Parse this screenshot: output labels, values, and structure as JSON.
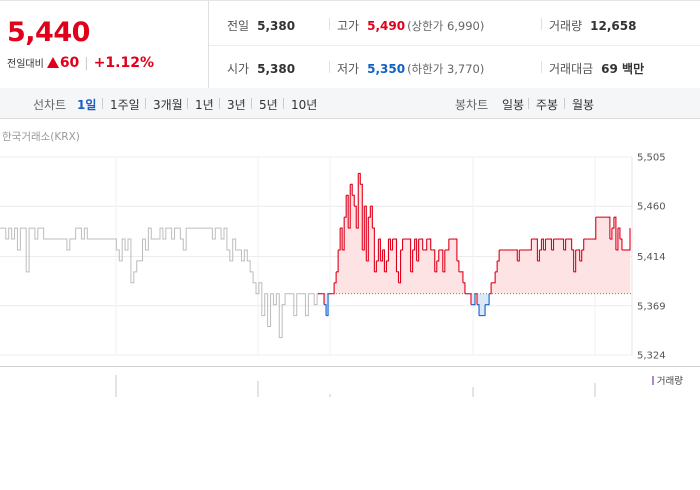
{
  "summary": {
    "price": "5,440",
    "change_label": "전일대비",
    "change_abs": "60",
    "change_pct": "+1.12%",
    "prev_close": {
      "label": "전일",
      "value": "5,380"
    },
    "open": {
      "label": "시가",
      "value": "5,380"
    },
    "high": {
      "label": "고가",
      "value": "5,490",
      "sub": "(상한가 6,990)"
    },
    "low": {
      "label": "저가",
      "value": "5,350",
      "sub": "(하한가 3,770)"
    },
    "volume": {
      "label": "거래량",
      "value": "12,658"
    },
    "amount": {
      "label": "거래대금",
      "value": "69 백만"
    }
  },
  "tabs": {
    "line_label": "선차트",
    "line_periods": [
      "1일",
      "1주일",
      "3개월",
      "1년",
      "3년",
      "5년",
      "10년"
    ],
    "active": "1일",
    "candle_label": "봉차트",
    "candle_periods": [
      "일봉",
      "주봉",
      "월봉"
    ]
  },
  "chart": {
    "source": "한국거래소(KRX)",
    "volume_legend": "거래량",
    "colors": {
      "up": "#e0001b",
      "down": "#1261c4",
      "before": "#bcbcbc",
      "fill_up": "#fde3e3",
      "fill_down": "#dbe8fa"
    }
  },
  "chart_data": {
    "type": "line",
    "ylim": [
      5324,
      5505
    ],
    "yticks": [
      "5,505",
      "5,460",
      "5,414",
      "5,369",
      "5,324"
    ],
    "yticks_values": [
      5505,
      5460,
      5414,
      5369,
      5324
    ],
    "baseline": 5380,
    "grid": true,
    "previous_series": [
      5440,
      5440,
      5430,
      5440,
      5430,
      5440,
      5420,
      5440,
      5440,
      5400,
      5440,
      5440,
      5430,
      5440,
      5440,
      5430,
      5430,
      5430,
      5430,
      5430,
      5430,
      5430,
      5430,
      5420,
      5430,
      5430,
      5440,
      5440,
      5430,
      5440,
      5430,
      5430,
      5430,
      5430,
      5430,
      5430,
      5430,
      5430,
      5430,
      5430,
      5420,
      5410,
      5430,
      5420,
      5430,
      5390,
      5400,
      5410,
      5410,
      5430,
      5420,
      5440,
      5430,
      5430,
      5430,
      5440,
      5430,
      5440,
      5440,
      5430,
      5440,
      5440,
      5430,
      5420,
      5440,
      5440,
      5440,
      5440,
      5440,
      5440,
      5440,
      5440,
      5440,
      5430,
      5440,
      5440,
      5430,
      5440,
      5420,
      5410,
      5430,
      5420,
      5420,
      5410,
      5420,
      5410,
      5400,
      5390,
      5380,
      5390,
      5360,
      5380,
      5350,
      5380,
      5370,
      5380,
      5340,
      5370,
      5380,
      5380,
      5380,
      5360,
      5380,
      5380,
      5380,
      5360,
      5380,
      5380,
      5370,
      5380,
      5380
    ],
    "today_series": [
      5380,
      5380,
      5380,
      5370,
      5360,
      5380,
      5380,
      5380,
      5390,
      5400,
      5420,
      5440,
      5420,
      5450,
      5470,
      5440,
      5480,
      5470,
      5460,
      5440,
      5490,
      5480,
      5420,
      5460,
      5410,
      5450,
      5460,
      5440,
      5400,
      5410,
      5430,
      5410,
      5420,
      5400,
      5410,
      5430,
      5420,
      5430,
      5430,
      5400,
      5390,
      5420,
      5430,
      5430,
      5430,
      5430,
      5400,
      5420,
      5430,
      5410,
      5430,
      5430,
      5420,
      5420,
      5430,
      5430,
      5420,
      5420,
      5400,
      5410,
      5420,
      5420,
      5400,
      5420,
      5420,
      5430,
      5430,
      5430,
      5430,
      5410,
      5400,
      5400,
      5390,
      5380,
      5380,
      5380,
      5370,
      5370,
      5380,
      5370,
      5360,
      5360,
      5360,
      5370,
      5370,
      5380,
      5390,
      5390,
      5400,
      5410,
      5420,
      5420,
      5420,
      5420,
      5420,
      5420,
      5420,
      5420,
      5420,
      5410,
      5420,
      5420,
      5420,
      5420,
      5420,
      5420,
      5430,
      5430,
      5430,
      5410,
      5420,
      5430,
      5420,
      5430,
      5430,
      5430,
      5420,
      5430,
      5430,
      5430,
      5430,
      5430,
      5420,
      5430,
      5430,
      5430,
      5420,
      5400,
      5420,
      5420,
      5410,
      5420,
      5430,
      5430,
      5430,
      5430,
      5430,
      5430,
      5450,
      5450,
      5450,
      5450,
      5450,
      5450,
      5450,
      5430,
      5440,
      5450,
      5420,
      5440,
      5430,
      5420,
      5420,
      5420,
      5420,
      5440
    ]
  }
}
